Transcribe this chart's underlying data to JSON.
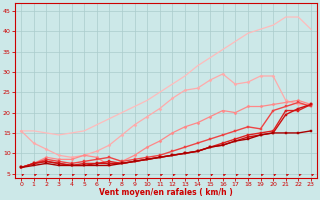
{
  "xlabel": "Vent moyen/en rafales ( km/h )",
  "bg_color": "#cce8e8",
  "grid_color": "#aacccc",
  "x_values": [
    0,
    1,
    2,
    3,
    4,
    5,
    6,
    7,
    8,
    9,
    10,
    11,
    12,
    13,
    14,
    15,
    16,
    17,
    18,
    19,
    20,
    21,
    22,
    23
  ],
  "ylim": [
    4,
    47
  ],
  "xlim": [
    -0.5,
    23.5
  ],
  "lines": [
    {
      "y": [
        15.5,
        15.5,
        15.0,
        14.5,
        15.0,
        15.5,
        17.0,
        18.5,
        20.0,
        21.5,
        23.0,
        25.0,
        27.0,
        29.0,
        31.5,
        33.5,
        35.5,
        37.5,
        39.5,
        40.5,
        41.5,
        43.5,
        43.5,
        40.5
      ],
      "color": "#ffbbbb",
      "lw": 0.9,
      "marker": null
    },
    {
      "y": [
        15.5,
        12.5,
        11.0,
        9.5,
        9.0,
        9.5,
        10.5,
        12.0,
        14.5,
        17.0,
        19.0,
        21.0,
        23.5,
        25.5,
        26.0,
        28.0,
        29.5,
        27.0,
        27.5,
        29.0,
        29.0,
        23.0,
        22.0,
        22.0
      ],
      "color": "#ffaaaa",
      "lw": 0.9,
      "marker": "D",
      "ms": 1.5
    },
    {
      "y": [
        6.5,
        7.5,
        9.0,
        8.5,
        8.5,
        9.5,
        9.0,
        7.0,
        8.0,
        9.5,
        11.5,
        13.0,
        15.0,
        16.5,
        17.5,
        19.0,
        20.5,
        20.0,
        21.5,
        21.5,
        22.0,
        22.5,
        23.0,
        22.0
      ],
      "color": "#ff8888",
      "lw": 0.9,
      "marker": "D",
      "ms": 1.5
    },
    {
      "y": [
        6.5,
        7.5,
        8.5,
        8.0,
        7.5,
        8.0,
        8.5,
        9.0,
        8.0,
        8.5,
        9.0,
        9.5,
        10.5,
        11.5,
        12.5,
        13.5,
        14.5,
        15.5,
        16.5,
        16.0,
        20.5,
        21.5,
        22.5,
        21.5
      ],
      "color": "#ee4444",
      "lw": 1.0,
      "marker": "s",
      "ms": 1.5
    },
    {
      "y": [
        6.5,
        7.5,
        8.0,
        7.5,
        7.0,
        7.5,
        7.5,
        8.0,
        7.5,
        8.0,
        8.5,
        9.0,
        9.5,
        10.0,
        10.5,
        11.5,
        12.5,
        13.5,
        14.5,
        15.0,
        15.5,
        20.5,
        20.5,
        22.0
      ],
      "color": "#dd2222",
      "lw": 1.0,
      "marker": "s",
      "ms": 1.5
    },
    {
      "y": [
        6.5,
        7.5,
        8.0,
        7.5,
        7.0,
        7.0,
        7.5,
        7.5,
        7.5,
        8.0,
        8.5,
        9.0,
        9.5,
        10.0,
        10.5,
        11.5,
        12.0,
        13.0,
        14.0,
        14.5,
        15.0,
        19.5,
        21.0,
        22.0
      ],
      "color": "#cc1111",
      "lw": 1.0,
      "marker": "s",
      "ms": 1.5
    },
    {
      "y": [
        6.5,
        7.0,
        7.5,
        7.0,
        7.0,
        7.0,
        7.0,
        7.0,
        7.5,
        8.0,
        8.5,
        9.0,
        9.5,
        10.0,
        10.5,
        11.5,
        12.0,
        13.0,
        13.5,
        14.5,
        15.0,
        15.0,
        15.0,
        15.5
      ],
      "color": "#aa0000",
      "lw": 1.0,
      "marker": "s",
      "ms": 1.5
    }
  ],
  "yticks": [
    5,
    10,
    15,
    20,
    25,
    30,
    35,
    40,
    45
  ],
  "xticks": [
    0,
    1,
    2,
    3,
    4,
    5,
    6,
    7,
    8,
    9,
    10,
    11,
    12,
    13,
    14,
    15,
    16,
    17,
    18,
    19,
    20,
    21,
    22,
    23
  ]
}
